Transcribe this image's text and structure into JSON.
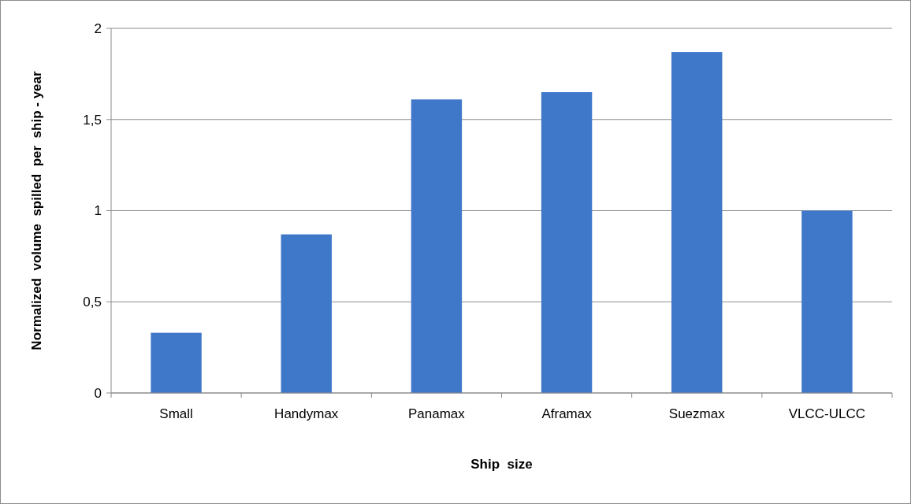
{
  "chart_data": {
    "type": "bar",
    "xlabel": "Ship  size",
    "ylabel": "Normalized  volume  spilled  per  ship - year",
    "categories": [
      "Small",
      "Handymax",
      "Panamax",
      "Aframax",
      "Suezmax",
      "VLCC-ULCC"
    ],
    "values": [
      0.33,
      0.87,
      1.61,
      1.65,
      1.87,
      1.0
    ],
    "color": "#3f78c9",
    "ylim": [
      0,
      2
    ],
    "yticks": [
      0,
      {
        "value": 0.5,
        "label": "0,5"
      },
      1,
      {
        "value": 1.5,
        "label": "1,5"
      },
      2
    ],
    "grid": "y"
  }
}
